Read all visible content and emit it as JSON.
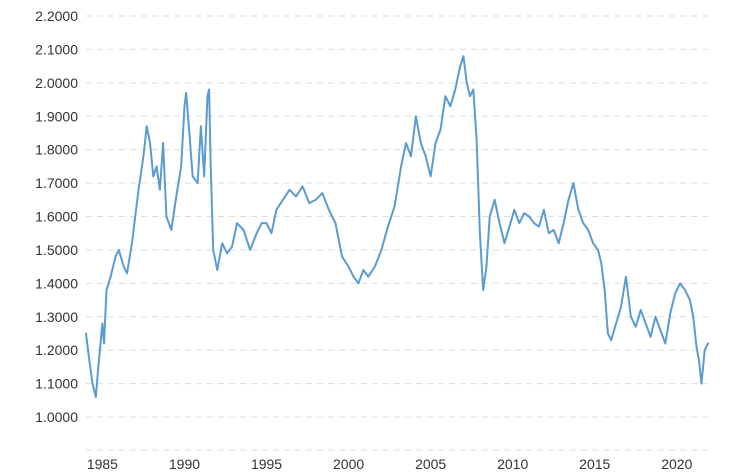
{
  "chart_data": {
    "type": "line",
    "title": "",
    "xlabel": "",
    "ylabel": "",
    "xlim": [
      1984.0,
      2021.9
    ],
    "ylim": [
      1.0,
      2.2
    ],
    "y_ticks": [
      "1.0000",
      "1.1000",
      "1.2000",
      "1.3000",
      "1.4000",
      "1.5000",
      "1.6000",
      "1.7000",
      "1.8000",
      "1.9000",
      "2.0000",
      "2.1000",
      "2.2000"
    ],
    "x_ticks": [
      "1985",
      "1990",
      "1995",
      "2000",
      "2005",
      "2010",
      "2015",
      "2020"
    ],
    "grid": true,
    "line_color": "#5b9bd0",
    "series": [
      {
        "x": [
          1984.0,
          1984.2,
          1984.4,
          1984.6,
          1984.75,
          1985.0,
          1985.1,
          1985.25,
          1985.5,
          1985.8,
          1986.0,
          1986.3,
          1986.5,
          1986.8,
          1987.0,
          1987.2,
          1987.5,
          1987.7,
          1987.9,
          1988.1,
          1988.3,
          1988.5,
          1988.7,
          1988.9,
          1989.2,
          1989.5,
          1989.8,
          1990.0,
          1990.1,
          1990.3,
          1990.5,
          1990.8,
          1991.0,
          1991.2,
          1991.4,
          1991.5,
          1991.6,
          1991.75,
          1992.0,
          1992.3,
          1992.6,
          1992.9,
          1993.2,
          1993.6,
          1994.0,
          1994.4,
          1994.7,
          1995.0,
          1995.3,
          1995.6,
          1996.0,
          1996.4,
          1996.8,
          1997.2,
          1997.6,
          1998.0,
          1998.4,
          1998.8,
          1999.2,
          1999.6,
          2000.0,
          2000.3,
          2000.6,
          2000.9,
          2001.2,
          2001.6,
          2002.0,
          2002.4,
          2002.8,
          2003.2,
          2003.5,
          2003.8,
          2004.1,
          2004.4,
          2004.7,
          2005.0,
          2005.3,
          2005.6,
          2005.9,
          2006.2,
          2006.5,
          2006.8,
          2007.0,
          2007.2,
          2007.4,
          2007.6,
          2007.8,
          2008.0,
          2008.2,
          2008.4,
          2008.6,
          2008.9,
          2009.2,
          2009.5,
          2009.8,
          2010.1,
          2010.4,
          2010.7,
          2011.0,
          2011.3,
          2011.6,
          2011.9,
          2012.2,
          2012.5,
          2012.8,
          2013.1,
          2013.4,
          2013.7,
          2014.0,
          2014.3,
          2014.6,
          2014.9,
          2015.2,
          2015.4,
          2015.6,
          2015.8,
          2016.0,
          2016.3,
          2016.6,
          2016.9,
          2017.2,
          2017.5,
          2017.8,
          2018.1,
          2018.4,
          2018.7,
          2019.0,
          2019.3,
          2019.6,
          2019.9,
          2020.2,
          2020.5,
          2020.8,
          2021.0,
          2021.2,
          2021.35,
          2021.5,
          2021.7,
          2021.9
        ],
        "values": [
          1.25,
          1.17,
          1.1,
          1.06,
          1.15,
          1.28,
          1.22,
          1.38,
          1.42,
          1.48,
          1.5,
          1.45,
          1.43,
          1.52,
          1.6,
          1.68,
          1.78,
          1.87,
          1.82,
          1.72,
          1.75,
          1.68,
          1.82,
          1.6,
          1.56,
          1.66,
          1.75,
          1.93,
          1.97,
          1.85,
          1.72,
          1.7,
          1.87,
          1.72,
          1.96,
          1.98,
          1.75,
          1.5,
          1.44,
          1.52,
          1.49,
          1.51,
          1.58,
          1.56,
          1.5,
          1.55,
          1.58,
          1.58,
          1.55,
          1.62,
          1.65,
          1.68,
          1.66,
          1.69,
          1.64,
          1.65,
          1.67,
          1.62,
          1.58,
          1.48,
          1.45,
          1.42,
          1.4,
          1.44,
          1.42,
          1.45,
          1.5,
          1.57,
          1.63,
          1.75,
          1.82,
          1.78,
          1.9,
          1.82,
          1.78,
          1.72,
          1.82,
          1.86,
          1.96,
          1.93,
          1.98,
          2.05,
          2.08,
          2.0,
          1.96,
          1.98,
          1.83,
          1.55,
          1.38,
          1.45,
          1.6,
          1.65,
          1.58,
          1.52,
          1.57,
          1.62,
          1.58,
          1.61,
          1.6,
          1.58,
          1.57,
          1.62,
          1.55,
          1.56,
          1.52,
          1.58,
          1.65,
          1.7,
          1.62,
          1.58,
          1.56,
          1.52,
          1.5,
          1.46,
          1.38,
          1.25,
          1.23,
          1.28,
          1.33,
          1.42,
          1.3,
          1.27,
          1.32,
          1.28,
          1.24,
          1.3,
          1.26,
          1.22,
          1.31,
          1.37,
          1.4,
          1.38,
          1.35,
          1.3,
          1.21,
          1.17,
          1.1,
          1.2,
          1.22
        ]
      }
    ]
  }
}
